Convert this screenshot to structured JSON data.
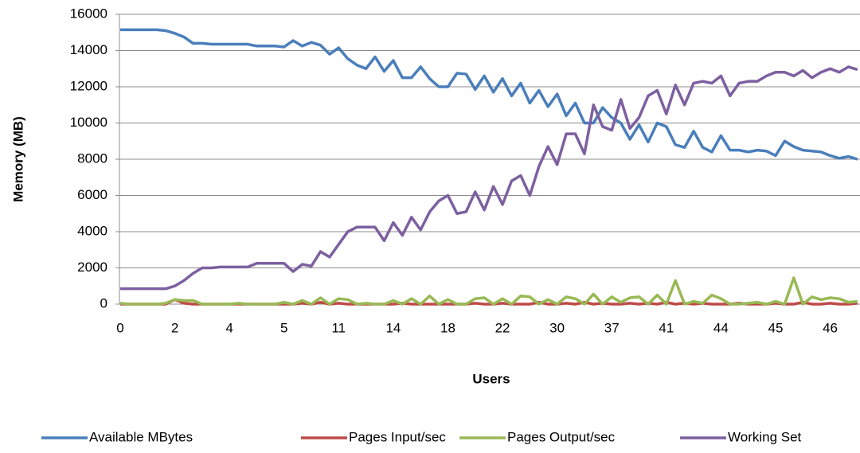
{
  "chart_data": {
    "type": "line",
    "xlabel": "Users",
    "ylabel": "Memory (MB)",
    "categories": [
      0,
      null,
      null,
      null,
      null,
      null,
      2,
      null,
      null,
      null,
      null,
      null,
      4,
      null,
      null,
      null,
      null,
      null,
      5,
      null,
      null,
      null,
      null,
      null,
      11,
      null,
      null,
      null,
      null,
      null,
      14,
      null,
      null,
      null,
      null,
      null,
      18,
      null,
      null,
      null,
      null,
      null,
      22,
      null,
      null,
      null,
      null,
      null,
      30,
      null,
      null,
      null,
      null,
      null,
      37,
      null,
      null,
      null,
      null,
      null,
      41,
      null,
      null,
      null,
      null,
      null,
      44,
      null,
      null,
      null,
      null,
      null,
      45,
      null,
      null,
      null,
      null,
      null,
      46,
      null,
      null,
      null
    ],
    "ylim": [
      0,
      16000
    ],
    "yticks": [
      0,
      2000,
      4000,
      6000,
      8000,
      10000,
      12000,
      14000,
      16000
    ],
    "grid": true,
    "legend": "bottom",
    "series": [
      {
        "name": "Available MBytes",
        "color": "#4a7ebb",
        "values": [
          15150,
          15150,
          15150,
          15150,
          15150,
          15100,
          14950,
          14750,
          14400,
          14400,
          14350,
          14350,
          14350,
          14350,
          14350,
          14250,
          14250,
          14250,
          14200,
          14550,
          14250,
          14450,
          14300,
          13800,
          14150,
          13550,
          13200,
          13000,
          13650,
          12850,
          13450,
          12500,
          12500,
          13100,
          12450,
          12000,
          12000,
          12750,
          12700,
          11850,
          12600,
          11700,
          12450,
          11500,
          12200,
          11100,
          11800,
          10900,
          11600,
          10400,
          11100,
          10000,
          10000,
          10850,
          10300,
          10000,
          9100,
          9900,
          8950,
          10000,
          9800,
          8800,
          8650,
          9550,
          8650,
          8400,
          9300,
          8500,
          8500,
          8400,
          8500,
          8450,
          8200,
          9000,
          8700,
          8500,
          8450,
          8400,
          8200,
          8050,
          8150,
          8000
        ]
      },
      {
        "name": "Pages Input/sec",
        "color": "#be4b48",
        "values": [
          0,
          0,
          0,
          0,
          0,
          0,
          250,
          50,
          0,
          0,
          0,
          0,
          0,
          0,
          0,
          0,
          0,
          0,
          0,
          0,
          50,
          0,
          100,
          0,
          50,
          0,
          0,
          0,
          0,
          0,
          0,
          50,
          0,
          0,
          0,
          0,
          0,
          0,
          0,
          50,
          0,
          0,
          50,
          0,
          0,
          0,
          100,
          0,
          0,
          50,
          0,
          100,
          0,
          50,
          0,
          0,
          50,
          0,
          50,
          0,
          100,
          0,
          50,
          0,
          50,
          0,
          0,
          0,
          50,
          0,
          0,
          0,
          50,
          0,
          0,
          100,
          0,
          0,
          50,
          0,
          0,
          50
        ]
      },
      {
        "name": "Pages Output/sec",
        "color": "#98b954",
        "values": [
          50,
          0,
          0,
          0,
          0,
          50,
          250,
          200,
          200,
          0,
          0,
          0,
          0,
          50,
          0,
          0,
          0,
          0,
          100,
          0,
          200,
          0,
          350,
          0,
          300,
          250,
          0,
          50,
          0,
          0,
          200,
          0,
          300,
          0,
          450,
          0,
          250,
          0,
          0,
          300,
          350,
          0,
          300,
          0,
          450,
          400,
          0,
          250,
          0,
          400,
          300,
          0,
          550,
          0,
          400,
          100,
          350,
          400,
          0,
          500,
          0,
          1300,
          0,
          150,
          50,
          500,
          300,
          0,
          0,
          50,
          100,
          0,
          150,
          0,
          1450,
          0,
          400,
          250,
          350,
          300,
          100,
          150
        ]
      },
      {
        "name": "Working Set",
        "color": "#7d60a0",
        "values": [
          850,
          850,
          850,
          850,
          850,
          850,
          1000,
          1300,
          1700,
          2000,
          2000,
          2050,
          2050,
          2050,
          2050,
          2250,
          2250,
          2250,
          2250,
          1800,
          2200,
          2100,
          2900,
          2600,
          3300,
          4000,
          4250,
          4250,
          4250,
          3500,
          4500,
          3800,
          4800,
          4100,
          5100,
          5700,
          6000,
          5000,
          5100,
          6200,
          5200,
          6500,
          5500,
          6800,
          7100,
          6000,
          7600,
          8700,
          7700,
          9400,
          9400,
          8300,
          11000,
          9800,
          9600,
          11300,
          9700,
          10300,
          11500,
          11800,
          10500,
          12100,
          11000,
          12200,
          12300,
          12200,
          12600,
          11500,
          12200,
          12300,
          12300,
          12600,
          12800,
          12800,
          12600,
          12900,
          12500,
          12800,
          13000,
          12800,
          13100,
          12950
        ]
      }
    ]
  }
}
